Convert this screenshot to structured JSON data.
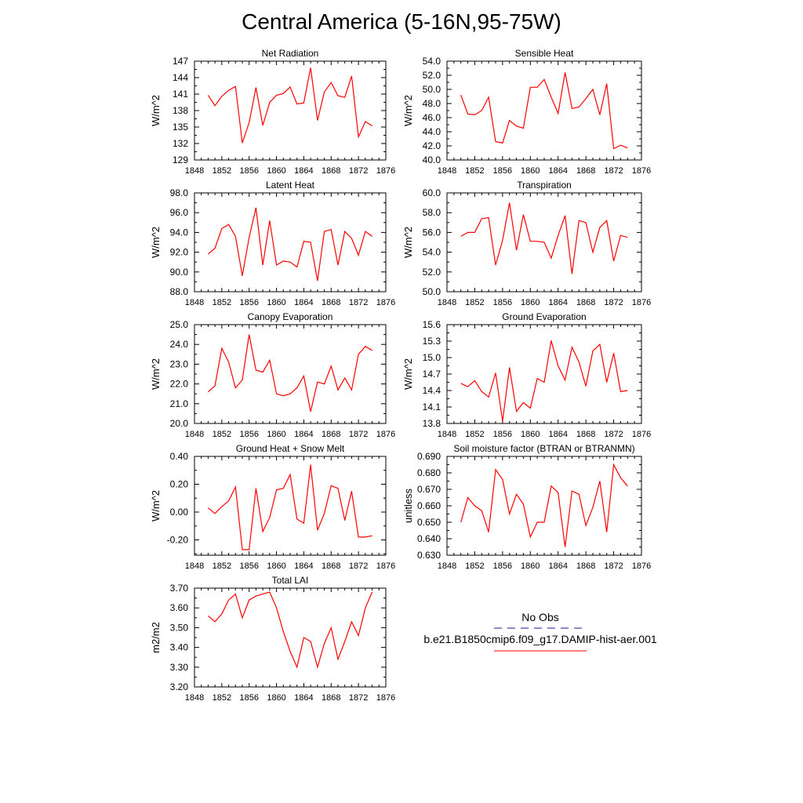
{
  "title": "Central America (5-16N,95-75W)",
  "line_color": "#ff0000",
  "legend": {
    "obs_label": "No Obs",
    "obs_color": "#1a1a99",
    "model_label": "b.e21.B1850cmip6.f09_g17.DAMIP-hist-aer.001",
    "model_color": "#ff0000"
  },
  "chart_data": [
    {
      "type": "line",
      "title": "Net Radiation",
      "ylabel": "W/m^2",
      "xlim": [
        1848,
        1876
      ],
      "x_ticks": [
        "1848",
        "1852",
        "1856",
        "1860",
        "1864",
        "1868",
        "1872",
        "1876"
      ],
      "ylim": [
        129,
        147
      ],
      "y_ticks": [
        "129",
        "132",
        "135",
        "138",
        "141",
        "144",
        "147"
      ],
      "x": [
        1850,
        1851,
        1852,
        1853,
        1854,
        1855,
        1856,
        1857,
        1858,
        1859,
        1860,
        1861,
        1862,
        1863,
        1864,
        1865,
        1866,
        1867,
        1868,
        1869,
        1870,
        1871,
        1872,
        1873,
        1874
      ],
      "series": [
        {
          "values": [
            140.8,
            138.9,
            140.6,
            141.7,
            142.4,
            132.1,
            135.8,
            142.2,
            135.3,
            139.5,
            140.8,
            141.1,
            142.3,
            139.2,
            139.4,
            145.8,
            136.2,
            141.4,
            143.1,
            140.7,
            140.4,
            144.3,
            133.2,
            136.0,
            135.2
          ]
        }
      ]
    },
    {
      "type": "line",
      "title": "Sensible Heat",
      "ylabel": "W/m^2",
      "xlim": [
        1848,
        1876
      ],
      "x_ticks": [
        "1848",
        "1852",
        "1856",
        "1860",
        "1864",
        "1868",
        "1872",
        "1876"
      ],
      "ylim": [
        40,
        54
      ],
      "y_ticks": [
        "40.0",
        "42.0",
        "44.0",
        "46.0",
        "48.0",
        "50.0",
        "52.0",
        "54.0"
      ],
      "x": [
        1850,
        1851,
        1852,
        1853,
        1854,
        1855,
        1856,
        1857,
        1858,
        1859,
        1860,
        1861,
        1862,
        1863,
        1864,
        1865,
        1866,
        1867,
        1868,
        1869,
        1870,
        1871,
        1872,
        1873,
        1874
      ],
      "series": [
        {
          "values": [
            49.2,
            46.5,
            46.4,
            47.0,
            48.9,
            42.6,
            42.4,
            45.6,
            44.8,
            44.5,
            50.3,
            50.3,
            51.4,
            48.9,
            46.6,
            52.4,
            47.3,
            47.5,
            48.7,
            50.0,
            46.4,
            50.8,
            41.6,
            42.1,
            41.7
          ]
        }
      ]
    },
    {
      "type": "line",
      "title": "Latent Heat",
      "ylabel": "W/m^2",
      "xlim": [
        1848,
        1876
      ],
      "x_ticks": [
        "1848",
        "1852",
        "1856",
        "1860",
        "1864",
        "1868",
        "1872",
        "1876"
      ],
      "ylim": [
        88,
        98
      ],
      "y_ticks": [
        "88.0",
        "90.0",
        "92.0",
        "94.0",
        "96.0",
        "98.0"
      ],
      "x": [
        1850,
        1851,
        1852,
        1853,
        1854,
        1855,
        1856,
        1857,
        1858,
        1859,
        1860,
        1861,
        1862,
        1863,
        1864,
        1865,
        1866,
        1867,
        1868,
        1869,
        1870,
        1871,
        1872,
        1873,
        1874
      ],
      "series": [
        {
          "values": [
            91.8,
            92.4,
            94.4,
            94.8,
            93.6,
            89.6,
            93.5,
            96.5,
            90.7,
            95.2,
            90.7,
            91.1,
            91.0,
            90.5,
            93.1,
            93.0,
            89.1,
            94.1,
            94.3,
            90.7,
            94.1,
            93.4,
            91.7,
            94.1,
            93.6
          ]
        }
      ]
    },
    {
      "type": "line",
      "title": "Transpiration",
      "ylabel": "W/m^2",
      "xlim": [
        1848,
        1876
      ],
      "x_ticks": [
        "1848",
        "1852",
        "1856",
        "1860",
        "1864",
        "1868",
        "1872",
        "1876"
      ],
      "ylim": [
        50,
        60
      ],
      "y_ticks": [
        "50.0",
        "52.0",
        "54.0",
        "56.0",
        "58.0",
        "60.0"
      ],
      "x": [
        1850,
        1851,
        1852,
        1853,
        1854,
        1855,
        1856,
        1857,
        1858,
        1859,
        1860,
        1861,
        1862,
        1863,
        1864,
        1865,
        1866,
        1867,
        1868,
        1869,
        1870,
        1871,
        1872,
        1873,
        1874
      ],
      "series": [
        {
          "values": [
            55.6,
            56.0,
            56.0,
            57.4,
            57.5,
            52.7,
            55.2,
            59.0,
            54.2,
            57.8,
            55.1,
            55.1,
            55.0,
            53.4,
            55.7,
            57.7,
            51.8,
            57.2,
            57.0,
            54.0,
            56.5,
            57.2,
            53.1,
            55.7,
            55.5
          ]
        }
      ]
    },
    {
      "type": "line",
      "title": "Canopy Evaporation",
      "ylabel": "W/m^2",
      "xlim": [
        1848,
        1876
      ],
      "x_ticks": [
        "1848",
        "1852",
        "1856",
        "1860",
        "1864",
        "1868",
        "1872",
        "1876"
      ],
      "ylim": [
        20,
        25
      ],
      "y_ticks": [
        "20.0",
        "21.0",
        "22.0",
        "23.0",
        "24.0",
        "25.0"
      ],
      "x": [
        1850,
        1851,
        1852,
        1853,
        1854,
        1855,
        1856,
        1857,
        1858,
        1859,
        1860,
        1861,
        1862,
        1863,
        1864,
        1865,
        1866,
        1867,
        1868,
        1869,
        1870,
        1871,
        1872,
        1873,
        1874
      ],
      "series": [
        {
          "values": [
            21.6,
            21.9,
            23.8,
            23.1,
            21.8,
            22.2,
            24.5,
            22.7,
            22.6,
            23.2,
            21.5,
            21.4,
            21.5,
            21.8,
            22.4,
            20.6,
            22.1,
            22.0,
            22.9,
            21.7,
            22.3,
            21.7,
            23.5,
            23.9,
            23.7
          ]
        }
      ]
    },
    {
      "type": "line",
      "title": "Ground Evaporation",
      "ylabel": "W/m^2",
      "xlim": [
        1848,
        1876
      ],
      "x_ticks": [
        "1848",
        "1852",
        "1856",
        "1860",
        "1864",
        "1868",
        "1872",
        "1876"
      ],
      "ylim": [
        13.8,
        15.6
      ],
      "y_ticks": [
        "13.8",
        "14.1",
        "14.4",
        "14.7",
        "15.0",
        "15.3",
        "15.6"
      ],
      "x": [
        1850,
        1851,
        1852,
        1853,
        1854,
        1855,
        1856,
        1857,
        1858,
        1859,
        1860,
        1861,
        1862,
        1863,
        1864,
        1865,
        1866,
        1867,
        1868,
        1869,
        1870,
        1871,
        1872,
        1873,
        1874
      ],
      "series": [
        {
          "values": [
            14.53,
            14.47,
            14.58,
            14.38,
            14.28,
            14.72,
            13.84,
            14.82,
            14.02,
            14.18,
            14.08,
            14.62,
            14.55,
            15.31,
            14.85,
            14.59,
            15.19,
            14.92,
            14.48,
            15.12,
            15.24,
            14.55,
            15.08,
            14.38,
            14.4
          ]
        }
      ]
    },
    {
      "type": "line",
      "title": "Ground Heat + Snow Melt",
      "ylabel": "W/m^2",
      "xlim": [
        1848,
        1876
      ],
      "x_ticks": [
        "1848",
        "1852",
        "1856",
        "1860",
        "1864",
        "1868",
        "1872",
        "1876"
      ],
      "ylim": [
        -0.31,
        0.4
      ],
      "y_ticks": [
        "-0.20",
        "0.00",
        "0.20",
        "0.40"
      ],
      "x": [
        1850,
        1851,
        1852,
        1853,
        1854,
        1855,
        1856,
        1857,
        1858,
        1859,
        1860,
        1861,
        1862,
        1863,
        1864,
        1865,
        1866,
        1867,
        1868,
        1869,
        1870,
        1871,
        1872,
        1873,
        1874
      ],
      "series": [
        {
          "values": [
            0.03,
            -0.01,
            0.04,
            0.08,
            0.18,
            -0.27,
            -0.27,
            0.17,
            -0.14,
            -0.04,
            0.16,
            0.17,
            0.27,
            -0.05,
            -0.08,
            0.34,
            -0.13,
            -0.01,
            0.19,
            0.17,
            -0.06,
            0.15,
            -0.18,
            -0.18,
            -0.17
          ]
        }
      ]
    },
    {
      "type": "line",
      "title": "Soil moisture factor (BTRAN or BTRANMN)",
      "ylabel": "unitless",
      "xlim": [
        1848,
        1876
      ],
      "x_ticks": [
        "1848",
        "1852",
        "1856",
        "1860",
        "1864",
        "1868",
        "1872",
        "1876"
      ],
      "ylim": [
        0.63,
        0.69
      ],
      "y_ticks": [
        "0.630",
        "0.640",
        "0.650",
        "0.660",
        "0.670",
        "0.680",
        "0.690"
      ],
      "x": [
        1850,
        1851,
        1852,
        1853,
        1854,
        1855,
        1856,
        1857,
        1858,
        1859,
        1860,
        1861,
        1862,
        1863,
        1864,
        1865,
        1866,
        1867,
        1868,
        1869,
        1870,
        1871,
        1872,
        1873,
        1874
      ],
      "series": [
        {
          "values": [
            0.65,
            0.665,
            0.66,
            0.657,
            0.644,
            0.682,
            0.676,
            0.655,
            0.667,
            0.661,
            0.641,
            0.65,
            0.65,
            0.672,
            0.668,
            0.635,
            0.669,
            0.667,
            0.648,
            0.659,
            0.675,
            0.644,
            0.685,
            0.677,
            0.672
          ]
        }
      ]
    },
    {
      "type": "line",
      "title": "Total LAI",
      "ylabel": "m2/m2",
      "xlim": [
        1848,
        1876
      ],
      "x_ticks": [
        "1848",
        "1852",
        "1856",
        "1860",
        "1864",
        "1868",
        "1872",
        "1876"
      ],
      "ylim": [
        3.2,
        3.7
      ],
      "y_ticks": [
        "3.20",
        "3.30",
        "3.40",
        "3.50",
        "3.60",
        "3.70"
      ],
      "x": [
        1850,
        1851,
        1852,
        1853,
        1854,
        1855,
        1856,
        1857,
        1858,
        1859,
        1860,
        1861,
        1862,
        1863,
        1864,
        1865,
        1866,
        1867,
        1868,
        1869,
        1870,
        1871,
        1872,
        1873,
        1874
      ],
      "series": [
        {
          "values": [
            3.56,
            3.53,
            3.57,
            3.64,
            3.67,
            3.55,
            3.64,
            3.66,
            3.67,
            3.68,
            3.6,
            3.48,
            3.38,
            3.3,
            3.45,
            3.43,
            3.3,
            3.42,
            3.5,
            3.34,
            3.43,
            3.53,
            3.46,
            3.6,
            3.68
          ]
        }
      ]
    }
  ]
}
